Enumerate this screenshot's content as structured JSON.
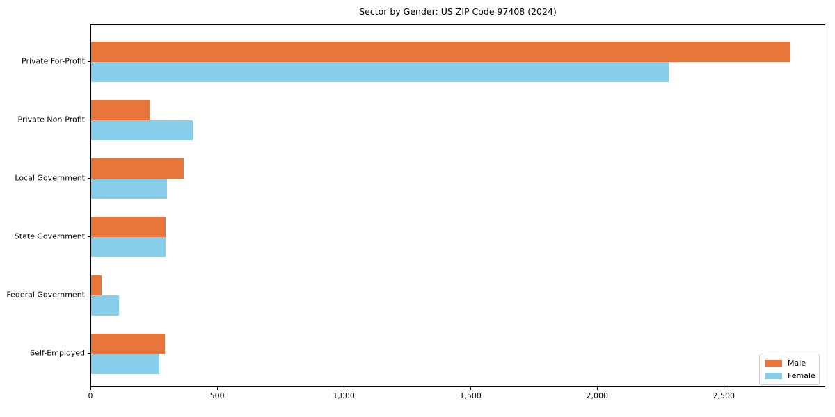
{
  "chart_data": {
    "type": "bar",
    "orientation": "horizontal",
    "title": "Sector by Gender: US ZIP Code 97408 (2024)",
    "categories": [
      "Private For-Profit",
      "Private Non-Profit",
      "Local Government",
      "State Government",
      "Federal Government",
      "Self-Employed"
    ],
    "series": [
      {
        "name": "Male",
        "color": "#E8763B",
        "values": [
          2760,
          230,
          365,
          295,
          40,
          290
        ]
      },
      {
        "name": "Female",
        "color": "#87CEEB",
        "values": [
          2280,
          400,
          300,
          295,
          110,
          270
        ]
      }
    ],
    "xlim": [
      0,
      2900
    ],
    "xticks": [
      0,
      500,
      1000,
      1500,
      2000,
      2500
    ],
    "xtick_labels": [
      "0",
      "500",
      "1,000",
      "1,500",
      "2,000",
      "2,500"
    ],
    "ylabel": "",
    "xlabel": "",
    "grid": false,
    "legend": {
      "position": "lower-right",
      "entries": [
        "Male",
        "Female"
      ]
    },
    "colors": {
      "background": "#ffffff",
      "axis": "#000000",
      "legend_border": "#cccccc"
    }
  }
}
